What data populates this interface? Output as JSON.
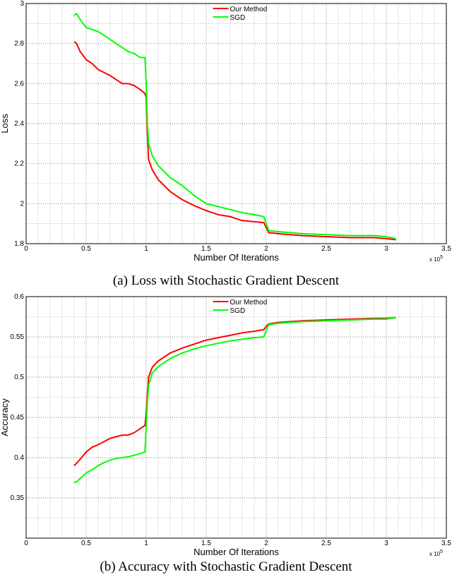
{
  "chart_data": [
    {
      "type": "line",
      "caption": "(a) Loss with Stochastic Gradient Descent",
      "xlabel": "Number Of Iterations",
      "ylabel": "Loss",
      "x_multiplier": {
        "base": "x 10",
        "exponent": "5"
      },
      "x": [
        0.4,
        0.42,
        0.45,
        0.5,
        0.55,
        0.6,
        0.65,
        0.7,
        0.75,
        0.8,
        0.85,
        0.9,
        0.95,
        0.99,
        1.0,
        1.01,
        1.02,
        1.05,
        1.1,
        1.2,
        1.3,
        1.4,
        1.5,
        1.6,
        1.7,
        1.8,
        1.9,
        1.98,
        2.0,
        2.02,
        2.1,
        2.3,
        2.5,
        2.7,
        2.9,
        3.0,
        3.08
      ],
      "series": [
        {
          "name": "Our Method",
          "color": "#ff0000",
          "values": [
            2.81,
            2.8,
            2.76,
            2.72,
            2.7,
            2.67,
            2.655,
            2.64,
            2.62,
            2.6,
            2.6,
            2.59,
            2.57,
            2.55,
            2.53,
            2.35,
            2.22,
            2.17,
            2.12,
            2.06,
            2.02,
            1.99,
            1.965,
            1.945,
            1.935,
            1.915,
            1.91,
            1.905,
            1.88,
            1.855,
            1.85,
            1.84,
            1.835,
            1.83,
            1.83,
            1.825,
            1.82
          ]
        },
        {
          "name": "SGD",
          "color": "#00ff00",
          "values": [
            2.94,
            2.95,
            2.92,
            2.88,
            2.87,
            2.86,
            2.84,
            2.82,
            2.8,
            2.78,
            2.76,
            2.75,
            2.73,
            2.73,
            2.6,
            2.4,
            2.3,
            2.24,
            2.19,
            2.13,
            2.09,
            2.04,
            2.0,
            1.985,
            1.97,
            1.955,
            1.945,
            1.935,
            1.9,
            1.865,
            1.86,
            1.85,
            1.845,
            1.84,
            1.84,
            1.835,
            1.825
          ]
        }
      ],
      "xlim": [
        0,
        3.5
      ],
      "xticks": [
        0,
        0.5,
        1,
        1.5,
        2,
        2.5,
        3,
        3.5
      ],
      "ylim": [
        1.8,
        3
      ],
      "yticks": [
        1.8,
        2,
        2.2,
        2.4,
        2.6,
        2.8,
        3
      ],
      "grid": true,
      "legend": "top"
    },
    {
      "type": "line",
      "caption": "(b) Accuracy with Stochastic Gradient Descent",
      "xlabel": "Number Of Iterations",
      "ylabel": "Accuracy",
      "x_multiplier": {
        "base": "x 10",
        "exponent": "5"
      },
      "x": [
        0.4,
        0.42,
        0.45,
        0.5,
        0.55,
        0.6,
        0.65,
        0.7,
        0.75,
        0.8,
        0.85,
        0.9,
        0.95,
        0.99,
        1.0,
        1.01,
        1.02,
        1.05,
        1.1,
        1.2,
        1.3,
        1.4,
        1.5,
        1.6,
        1.7,
        1.8,
        1.9,
        1.98,
        2.0,
        2.02,
        2.1,
        2.3,
        2.5,
        2.7,
        2.9,
        3.0,
        3.08
      ],
      "series": [
        {
          "name": "Our Method",
          "color": "#ff0000",
          "values": [
            0.39,
            0.393,
            0.398,
            0.407,
            0.413,
            0.416,
            0.42,
            0.424,
            0.426,
            0.428,
            0.428,
            0.431,
            0.436,
            0.44,
            0.455,
            0.48,
            0.5,
            0.512,
            0.52,
            0.53,
            0.536,
            0.541,
            0.546,
            0.549,
            0.552,
            0.555,
            0.557,
            0.559,
            0.563,
            0.566,
            0.568,
            0.57,
            0.571,
            0.572,
            0.573,
            0.573,
            0.574
          ]
        },
        {
          "name": "SGD",
          "color": "#00ff00",
          "values": [
            0.369,
            0.37,
            0.374,
            0.381,
            0.385,
            0.39,
            0.394,
            0.397,
            0.399,
            0.4,
            0.401,
            0.403,
            0.405,
            0.407,
            0.44,
            0.47,
            0.49,
            0.505,
            0.513,
            0.523,
            0.53,
            0.535,
            0.539,
            0.542,
            0.545,
            0.547,
            0.549,
            0.55,
            0.558,
            0.565,
            0.567,
            0.569,
            0.57,
            0.571,
            0.572,
            0.572,
            0.574
          ]
        }
      ],
      "xlim": [
        0,
        3.5
      ],
      "xticks": [
        0,
        0.5,
        1,
        1.5,
        2,
        2.5,
        3,
        3.5
      ],
      "ylim": [
        0.3,
        0.6
      ],
      "yticks": [
        0.35,
        0.4,
        0.45,
        0.5,
        0.55,
        0.6
      ],
      "grid": true,
      "legend": "top"
    }
  ]
}
